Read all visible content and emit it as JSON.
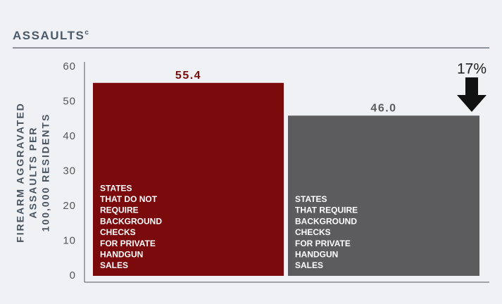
{
  "chart_data": {
    "type": "bar",
    "title": "ASSAULTS",
    "title_superscript": "c",
    "ylabel": [
      "FIREARM AGGRAVATED",
      "ASSAULTS PER",
      "100,000 RESIDENTS"
    ],
    "categories": [
      [
        "STATES",
        "THAT DO NOT",
        "REQUIRE",
        "BACKGROUND",
        "CHECKS",
        "FOR PRIVATE",
        "HANDGUN",
        "SALES"
      ],
      [
        "STATES",
        "THAT REQUIRE",
        "BACKGROUND",
        "CHECKS",
        "FOR PRIVATE",
        "HANDGUN",
        "SALES"
      ]
    ],
    "values": [
      55.4,
      46.0
    ],
    "value_labels": [
      "55.4",
      "46.0"
    ],
    "colors": [
      "#7b0a0c",
      "#5c5c5e"
    ],
    "ylim": [
      0,
      60
    ],
    "yticks": [
      0,
      10,
      20,
      30,
      40,
      50,
      60
    ],
    "grid": false,
    "annotation": "17%"
  }
}
